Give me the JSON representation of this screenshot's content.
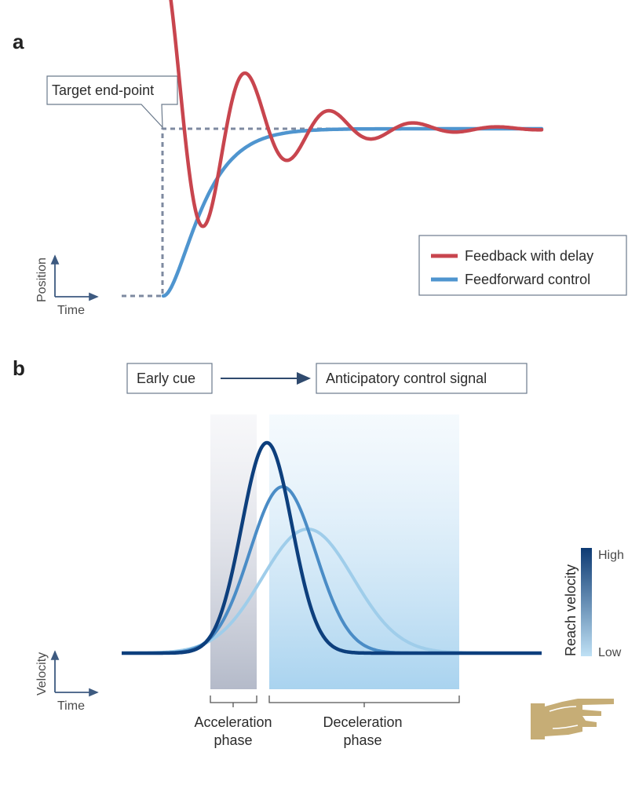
{
  "panel_a": {
    "letter": "a",
    "callout": "Target end-point",
    "axis_y_label": "Position",
    "axis_x_label": "Time",
    "legend": [
      {
        "label": "Feedback with delay",
        "color": "#c8454e"
      },
      {
        "label": "Feedforward control",
        "color": "#4f95cf"
      }
    ]
  },
  "panel_b": {
    "letter": "b",
    "cue_label": "Early cue",
    "signal_label": "Anticipatory control signal",
    "axis_y_label": "Velocity",
    "axis_x_label": "Time",
    "phase_accel": [
      "Acceleration",
      "phase"
    ],
    "phase_decel": [
      "Deceleration",
      "phase"
    ],
    "colorbar": {
      "title": "Reach velocity",
      "high": "High",
      "low": "Low",
      "high_color": "#0d3a73",
      "low_color": "#bfe1f5"
    },
    "curve_colors": [
      "#0d3f7d",
      "#4a8cc6",
      "#9fcdea"
    ]
  },
  "icon": "pointing-hand-icon"
}
